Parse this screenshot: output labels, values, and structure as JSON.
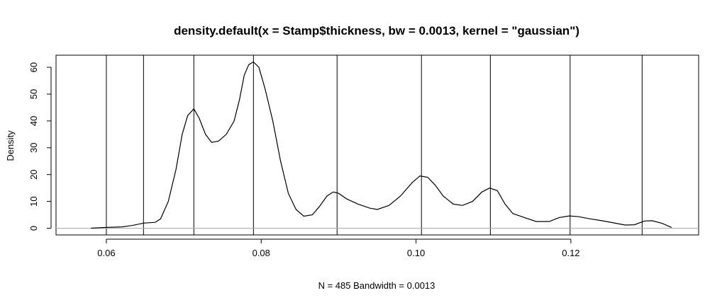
{
  "chart_data": {
    "type": "line",
    "title": "density.default(x = Stamp$thickness, bw = 0.0013, kernel = \"gaussian\")",
    "xlabel": "N = 485   Bandwidth = 0.0013",
    "ylabel": "Density",
    "xlim": [
      0.0535,
      0.1365
    ],
    "ylim": [
      -2.5,
      64.5
    ],
    "x_ticks": [
      0.06,
      0.08,
      0.1,
      0.12
    ],
    "x_tick_labels": [
      "0.06",
      "0.08",
      "0.10",
      "0.12"
    ],
    "y_ticks": [
      0,
      10,
      20,
      30,
      40,
      50,
      60
    ],
    "y_tick_labels": [
      "0",
      "10",
      "20",
      "30",
      "40",
      "50",
      "60"
    ],
    "baseline": 0,
    "vertical_lines": [
      0.06,
      0.0648,
      0.0713,
      0.079,
      0.0898,
      0.1007,
      0.1096,
      0.1199,
      0.1292
    ],
    "series": [
      {
        "x": [
          0.058,
          0.06,
          0.062,
          0.0633,
          0.0648,
          0.0663,
          0.067,
          0.068,
          0.069,
          0.0698,
          0.0705,
          0.0713,
          0.072,
          0.0728,
          0.0736,
          0.0745,
          0.0755,
          0.0765,
          0.0772,
          0.0778,
          0.0784,
          0.079,
          0.0797,
          0.0805,
          0.0815,
          0.0825,
          0.0835,
          0.0845,
          0.0855,
          0.0866,
          0.0875,
          0.0885,
          0.0893,
          0.09,
          0.091,
          0.0925,
          0.094,
          0.095,
          0.0965,
          0.098,
          0.0995,
          0.1005,
          0.1015,
          0.1025,
          0.1035,
          0.1048,
          0.106,
          0.1073,
          0.1085,
          0.1095,
          0.1105,
          0.1115,
          0.1125,
          0.114,
          0.1155,
          0.1172,
          0.1185,
          0.1198,
          0.121,
          0.1225,
          0.124,
          0.1255,
          0.127,
          0.1282,
          0.1295,
          0.1305,
          0.1318,
          0.133
        ],
        "y": [
          0.0,
          0.3,
          0.5,
          1.0,
          1.9,
          2.2,
          3.5,
          10.0,
          22.0,
          35.0,
          42.0,
          44.5,
          41.0,
          35.0,
          32.0,
          32.5,
          35.0,
          40.0,
          48.0,
          57.0,
          61.0,
          62.0,
          60.0,
          52.0,
          40.0,
          25.0,
          13.0,
          7.0,
          4.5,
          5.0,
          8.0,
          12.0,
          13.5,
          13.0,
          11.0,
          9.0,
          7.5,
          7.0,
          8.5,
          12.0,
          17.0,
          19.5,
          19.0,
          16.0,
          12.0,
          9.0,
          8.5,
          10.0,
          13.5,
          15.0,
          14.0,
          9.0,
          5.5,
          4.0,
          2.5,
          2.5,
          4.0,
          4.6,
          4.3,
          3.5,
          2.8,
          2.0,
          1.2,
          1.3,
          2.7,
          2.8,
          1.8,
          0.3
        ]
      }
    ]
  }
}
